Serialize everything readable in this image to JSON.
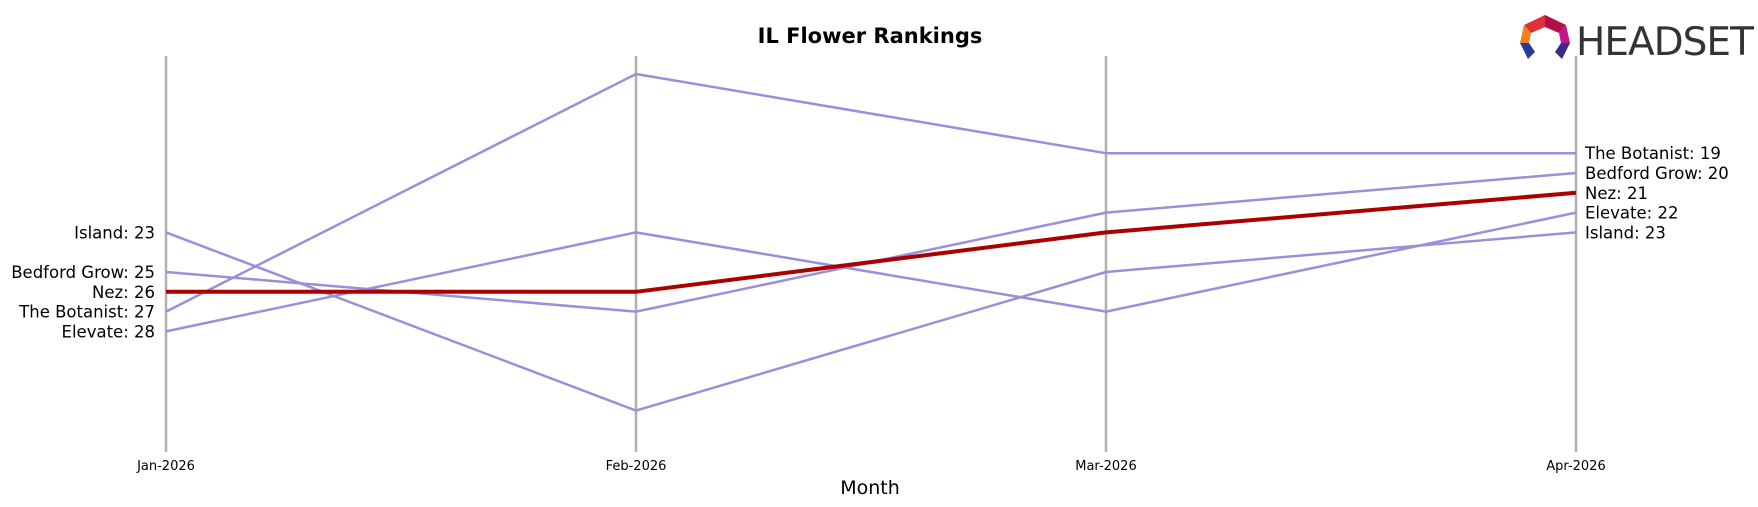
{
  "brand": {
    "name": "HEADSET"
  },
  "chart_data": {
    "type": "line",
    "title": "IL Flower Rankings",
    "xlabel": "Month",
    "ylabel": "",
    "x": [
      "Jan-2026",
      "Feb-2026",
      "Mar-2026",
      "Apr-2026"
    ],
    "y_inverted": true,
    "ylim": [
      14.1,
      34.1
    ],
    "grid": false,
    "legend": "none",
    "highlight": "Nez",
    "colors": {
      "highlight": "#aa0000",
      "other": "#9b8fda",
      "axis": "#b0b0b0"
    },
    "series": [
      {
        "name": "Island",
        "values": [
          23,
          32,
          25,
          23
        ],
        "start_label": "Island: 23",
        "end_label": "Island: 23"
      },
      {
        "name": "Bedford Grow",
        "values": [
          25,
          27,
          22,
          20
        ],
        "start_label": "Bedford Grow: 25",
        "end_label": "Bedford Grow: 20"
      },
      {
        "name": "Nez",
        "values": [
          26,
          26,
          23,
          21
        ],
        "start_label": "Nez: 26",
        "end_label": "Nez: 21"
      },
      {
        "name": "The Botanist",
        "values": [
          27,
          15,
          19,
          19
        ],
        "start_label": "The Botanist: 27",
        "end_label": "The Botanist: 19"
      },
      {
        "name": "Elevate",
        "values": [
          28,
          23,
          27,
          22
        ],
        "start_label": "Elevate: 28",
        "end_label": "Elevate: 22"
      }
    ]
  }
}
